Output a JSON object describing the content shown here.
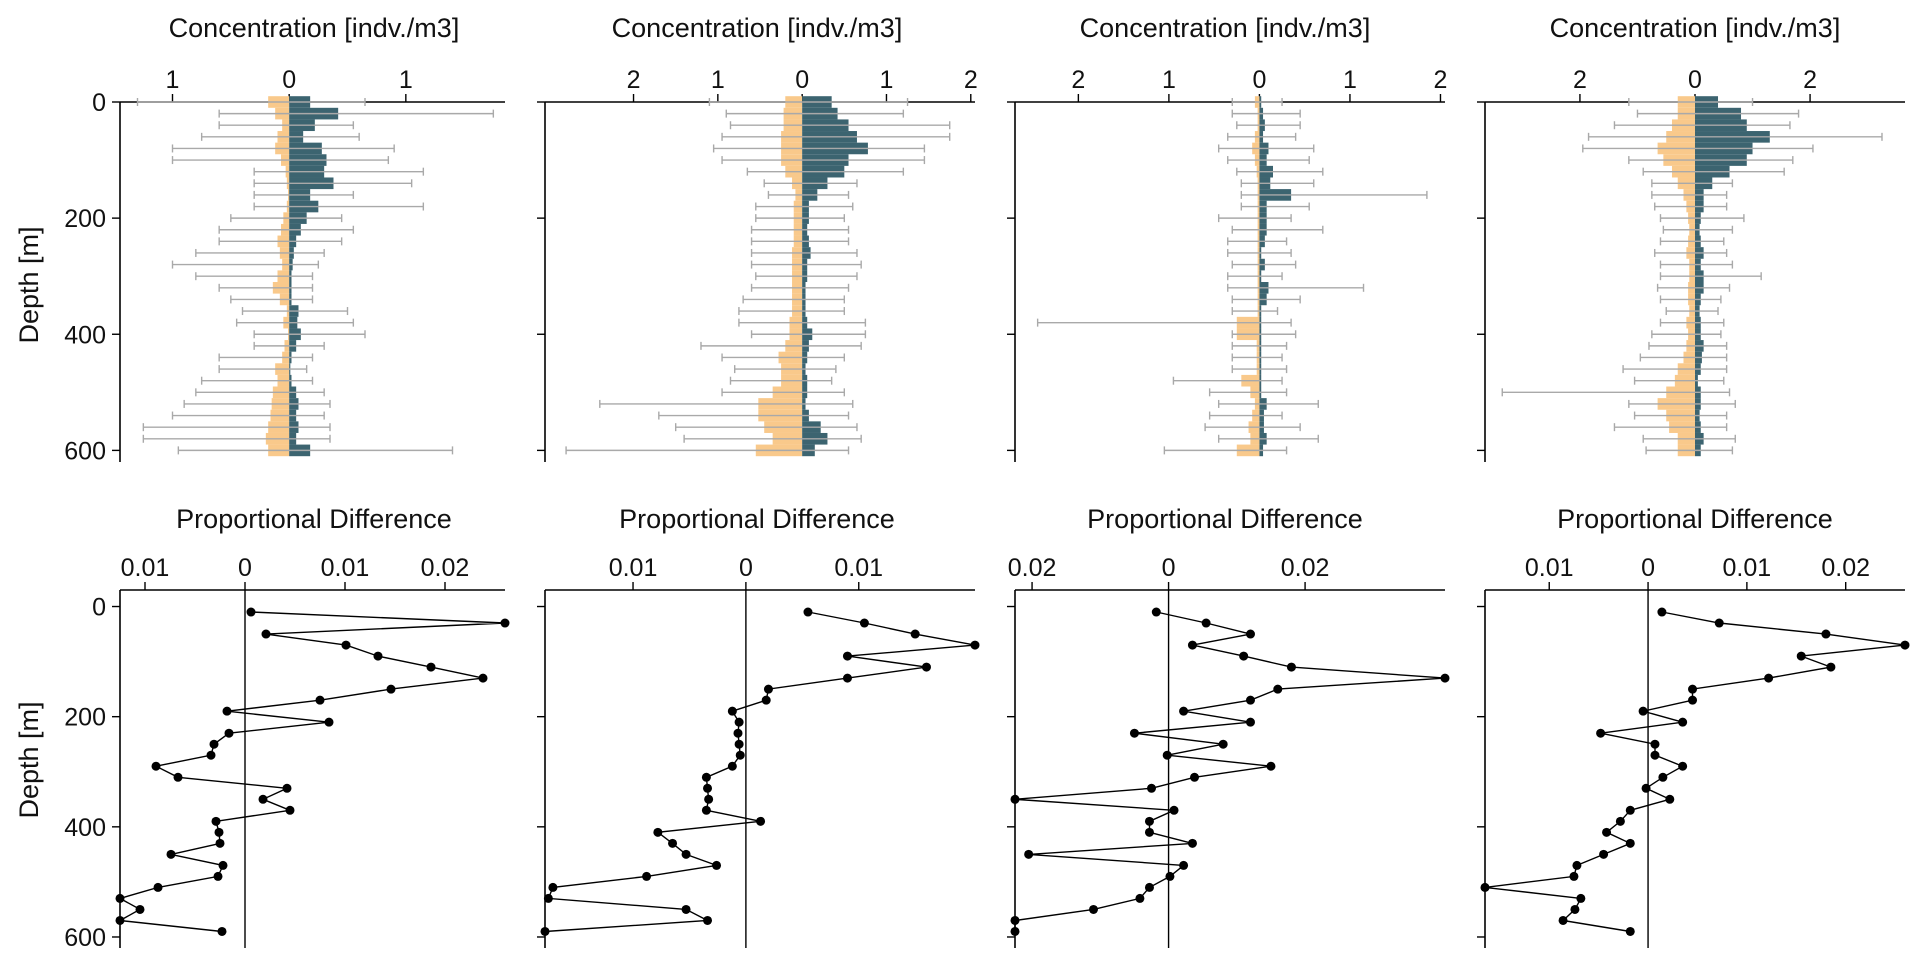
{
  "colors": {
    "left": "#F9C98B",
    "right": "#3C6470",
    "error": "#A9A9A9",
    "line": "#000000"
  },
  "labels": {
    "top_title": "Concentration [indv./m3]",
    "bottom_title": "Proportional Difference",
    "ylabel": "Depth [m]"
  },
  "chart_data": [
    {
      "type": "bar",
      "panel": 1,
      "title": "Concentration [indv./m3]",
      "ylabel": "Depth [m]",
      "xticks": [
        {
          "v": -1,
          "t": "1"
        },
        {
          "v": 0,
          "t": "0"
        },
        {
          "v": 1,
          "t": "1"
        }
      ],
      "xlim": [
        -1.45,
        1.85
      ],
      "ylim": [
        0,
        620
      ],
      "yticks": [
        0,
        200,
        400,
        600
      ],
      "depths": [
        0,
        20,
        40,
        60,
        80,
        100,
        120,
        140,
        160,
        180,
        200,
        220,
        240,
        260,
        280,
        300,
        320,
        340,
        360,
        380,
        400,
        420,
        440,
        460,
        480,
        500,
        520,
        540,
        560,
        580,
        600
      ],
      "series": [
        {
          "side": "left",
          "values": [
            0.18,
            0.12,
            0.06,
            0.1,
            0.12,
            0.07,
            0.03,
            0.02,
            0.01,
            0.02,
            0.05,
            0.07,
            0.1,
            0.08,
            0.06,
            0.1,
            0.14,
            0.08,
            0.02,
            0.05,
            0.01,
            0.04,
            0.06,
            0.12,
            0.1,
            0.14,
            0.15,
            0.16,
            0.18,
            0.2,
            0.18
          ],
          "err": [
            1.3,
            0.6,
            0.6,
            0.75,
            1.0,
            1.0,
            0.3,
            0.3,
            0.3,
            0.3,
            0.5,
            0.6,
            0.6,
            0.8,
            1.0,
            0.8,
            0.6,
            0.5,
            0.4,
            0.45,
            0.3,
            0.3,
            0.6,
            0.6,
            0.75,
            0.8,
            0.9,
            1.0,
            1.25,
            1.25,
            0.95
          ]
        },
        {
          "side": "right",
          "values": [
            0.18,
            0.42,
            0.22,
            0.12,
            0.28,
            0.32,
            0.3,
            0.38,
            0.18,
            0.25,
            0.15,
            0.1,
            0.06,
            0.04,
            0.03,
            0.02,
            0.02,
            0.02,
            0.08,
            0.07,
            0.1,
            0.06,
            0.02,
            0.01,
            0.02,
            0.06,
            0.08,
            0.06,
            0.08,
            0.06,
            0.18
          ],
          "err": [
            0.65,
            1.75,
            0.55,
            0.6,
            0.9,
            0.85,
            1.15,
            1.05,
            0.55,
            1.15,
            0.45,
            0.55,
            0.45,
            0.3,
            0.25,
            0.2,
            0.2,
            0.2,
            0.5,
            0.55,
            0.65,
            0.3,
            0.2,
            0.15,
            0.2,
            0.3,
            0.35,
            0.3,
            0.35,
            0.35,
            1.4
          ]
        }
      ]
    },
    {
      "type": "bar",
      "panel": 2,
      "title": "Concentration [indv./m3]",
      "ylabel": "",
      "xticks": [
        {
          "v": -2,
          "t": "2"
        },
        {
          "v": -1,
          "t": "1"
        },
        {
          "v": 0,
          "t": "0"
        },
        {
          "v": 1,
          "t": "1"
        },
        {
          "v": 2,
          "t": "2"
        }
      ],
      "xlim": [
        -3.05,
        2.05
      ],
      "ylim": [
        0,
        620
      ],
      "yticks": [
        0,
        200,
        400,
        600
      ],
      "depths": [
        0,
        20,
        40,
        60,
        80,
        100,
        120,
        140,
        160,
        180,
        200,
        220,
        240,
        260,
        280,
        300,
        320,
        340,
        360,
        380,
        400,
        420,
        440,
        460,
        480,
        500,
        520,
        540,
        560,
        580,
        600
      ],
      "series": [
        {
          "side": "left",
          "values": [
            0.2,
            0.22,
            0.22,
            0.25,
            0.25,
            0.25,
            0.2,
            0.12,
            0.08,
            0.1,
            0.1,
            0.1,
            0.1,
            0.12,
            0.12,
            0.12,
            0.12,
            0.12,
            0.12,
            0.15,
            0.15,
            0.2,
            0.28,
            0.25,
            0.25,
            0.35,
            0.52,
            0.52,
            0.45,
            0.35,
            0.55
          ],
          "err": [
            1.1,
            0.9,
            0.85,
            0.95,
            1.05,
            0.95,
            0.65,
            0.45,
            0.4,
            0.55,
            0.55,
            0.6,
            0.6,
            0.6,
            0.6,
            0.55,
            0.6,
            0.7,
            0.75,
            0.75,
            0.6,
            1.2,
            0.95,
            0.8,
            0.85,
            0.95,
            2.4,
            1.7,
            1.5,
            1.4,
            2.8
          ]
        },
        {
          "side": "right",
          "values": [
            0.35,
            0.42,
            0.55,
            0.65,
            0.78,
            0.55,
            0.5,
            0.3,
            0.18,
            0.08,
            0.08,
            0.06,
            0.08,
            0.1,
            0.06,
            0.06,
            0.04,
            0.04,
            0.04,
            0.06,
            0.12,
            0.08,
            0.06,
            0.04,
            0.06,
            0.06,
            0.04,
            0.08,
            0.22,
            0.3,
            0.15
          ],
          "err": [
            1.25,
            1.2,
            1.75,
            1.75,
            1.45,
            1.45,
            1.2,
            0.65,
            0.55,
            0.6,
            0.5,
            0.55,
            0.55,
            0.65,
            0.7,
            0.65,
            0.55,
            0.5,
            0.5,
            0.75,
            0.75,
            0.7,
            0.5,
            0.4,
            0.35,
            0.5,
            0.6,
            0.55,
            0.65,
            0.7,
            0.55
          ]
        }
      ]
    },
    {
      "type": "bar",
      "panel": 3,
      "title": "Concentration [indv./m3]",
      "ylabel": "",
      "xticks": [
        {
          "v": -2,
          "t": "2"
        },
        {
          "v": -1,
          "t": "1"
        },
        {
          "v": 0,
          "t": "0"
        },
        {
          "v": 1,
          "t": "1"
        },
        {
          "v": 2,
          "t": "2"
        }
      ],
      "xlim": [
        -2.7,
        2.05
      ],
      "ylim": [
        0,
        620
      ],
      "yticks": [
        0,
        200,
        400,
        600
      ],
      "depths": [
        0,
        20,
        40,
        60,
        80,
        100,
        120,
        140,
        160,
        180,
        200,
        220,
        240,
        260,
        280,
        300,
        320,
        340,
        360,
        380,
        400,
        420,
        440,
        460,
        480,
        500,
        520,
        540,
        560,
        580,
        600
      ],
      "series": [
        {
          "side": "left",
          "values": [
            0.05,
            0.02,
            0.02,
            0.05,
            0.08,
            0.05,
            0.03,
            0.02,
            0.02,
            0.02,
            0.02,
            0.02,
            0.02,
            0.02,
            0.02,
            0.02,
            0.02,
            0.02,
            0.02,
            0.25,
            0.25,
            0.03,
            0.03,
            0.03,
            0.2,
            0.1,
            0.05,
            0.08,
            0.12,
            0.1,
            0.25
          ],
          "err": [
            0.3,
            0.3,
            0.25,
            0.35,
            0.45,
            0.35,
            0.25,
            0.2,
            0.2,
            0.2,
            0.45,
            0.3,
            0.35,
            0.35,
            0.3,
            0.35,
            0.35,
            0.3,
            0.3,
            2.45,
            0.3,
            0.3,
            0.3,
            0.3,
            0.95,
            0.55,
            0.45,
            0.55,
            0.6,
            0.45,
            1.05
          ]
        },
        {
          "side": "right",
          "values": [
            0.02,
            0.04,
            0.06,
            0.04,
            0.1,
            0.08,
            0.15,
            0.12,
            0.35,
            0.08,
            0.08,
            0.08,
            0.06,
            0.02,
            0.06,
            0.02,
            0.1,
            0.08,
            0.02,
            0.02,
            0.02,
            0.02,
            0.02,
            0.02,
            0.02,
            0.02,
            0.08,
            0.05,
            0.05,
            0.08,
            0.04
          ],
          "err": [
            0.25,
            0.45,
            0.45,
            0.4,
            0.6,
            0.55,
            0.7,
            0.6,
            1.85,
            0.55,
            0.35,
            0.7,
            0.3,
            0.35,
            0.4,
            0.25,
            1.15,
            0.45,
            0.2,
            0.35,
            0.4,
            0.3,
            0.25,
            0.3,
            0.25,
            0.3,
            0.65,
            0.25,
            0.45,
            0.65,
            0.3
          ]
        }
      ]
    },
    {
      "type": "bar",
      "panel": 4,
      "title": "Concentration [indv./m3]",
      "ylabel": "",
      "xticks": [
        {
          "v": -2,
          "t": "2"
        },
        {
          "v": 0,
          "t": "0"
        },
        {
          "v": 2,
          "t": "2"
        }
      ],
      "xlim": [
        -3.65,
        3.65
      ],
      "ylim": [
        0,
        620
      ],
      "yticks": [
        0,
        200,
        400,
        600
      ],
      "depths": [
        0,
        20,
        40,
        60,
        80,
        100,
        120,
        140,
        160,
        180,
        200,
        220,
        240,
        260,
        280,
        300,
        320,
        340,
        360,
        380,
        400,
        420,
        440,
        460,
        480,
        500,
        520,
        540,
        560,
        580,
        600
      ],
      "series": [
        {
          "side": "left",
          "values": [
            0.3,
            0.3,
            0.4,
            0.5,
            0.65,
            0.55,
            0.4,
            0.3,
            0.2,
            0.15,
            0.12,
            0.1,
            0.12,
            0.15,
            0.1,
            0.1,
            0.12,
            0.12,
            0.1,
            0.15,
            0.12,
            0.15,
            0.2,
            0.3,
            0.35,
            0.5,
            0.65,
            0.5,
            0.45,
            0.3,
            0.3
          ],
          "err": [
            1.15,
            1.0,
            1.4,
            1.85,
            1.95,
            1.15,
            0.9,
            0.75,
            0.75,
            0.7,
            0.6,
            0.55,
            0.6,
            0.7,
            0.6,
            0.6,
            0.65,
            0.6,
            0.5,
            0.6,
            0.75,
            0.8,
            0.95,
            1.25,
            1.05,
            3.35,
            1.15,
            1.05,
            1.4,
            0.9,
            0.85
          ]
        },
        {
          "side": "right",
          "values": [
            0.4,
            0.8,
            0.9,
            1.3,
            1.0,
            0.9,
            0.6,
            0.3,
            0.15,
            0.15,
            0.1,
            0.08,
            0.1,
            0.15,
            0.1,
            0.15,
            0.15,
            0.1,
            0.08,
            0.1,
            0.1,
            0.15,
            0.12,
            0.1,
            0.05,
            0.1,
            0.1,
            0.08,
            0.1,
            0.15,
            0.1
          ],
          "err": [
            1.0,
            1.8,
            1.65,
            3.25,
            2.05,
            1.7,
            1.55,
            0.65,
            0.55,
            0.55,
            0.85,
            0.65,
            0.5,
            0.55,
            0.65,
            1.15,
            0.6,
            0.45,
            0.4,
            0.5,
            0.45,
            0.55,
            0.55,
            0.55,
            0.5,
            0.6,
            0.7,
            0.55,
            0.55,
            0.7,
            0.65
          ]
        }
      ]
    },
    {
      "type": "line",
      "panel": 5,
      "title": "Proportional Difference",
      "ylabel": "Depth [m]",
      "xticks": [
        {
          "v": -0.01,
          "t": "0.01"
        },
        {
          "v": 0,
          "t": "0"
        },
        {
          "v": 0.01,
          "t": "0.01"
        },
        {
          "v": 0.02,
          "t": "0.02"
        }
      ],
      "xlim": [
        -0.0125,
        0.026
      ],
      "ylim": [
        -30,
        620
      ],
      "yticks": [
        0,
        200,
        400,
        600
      ],
      "y": [
        10,
        30,
        50,
        70,
        90,
        110,
        130,
        150,
        170,
        190,
        210,
        230,
        250,
        270,
        290,
        310,
        330,
        350,
        370,
        390,
        410,
        430,
        450,
        470,
        490,
        510,
        530,
        550,
        570,
        590
      ],
      "x": [
        0.0006,
        0.026,
        0.0021,
        0.0101,
        0.0133,
        0.0186,
        0.0238,
        0.0146,
        0.0075,
        -0.0018,
        0.0084,
        -0.0016,
        -0.0031,
        -0.0034,
        -0.0089,
        -0.0067,
        0.0042,
        0.0018,
        0.0045,
        -0.0029,
        -0.0026,
        -0.0025,
        -0.0074,
        -0.0022,
        -0.0027,
        -0.0087,
        -0.0125,
        -0.0105,
        -0.0125,
        -0.0023
      ]
    },
    {
      "type": "line",
      "panel": 6,
      "title": "Proportional Difference",
      "ylabel": "",
      "xticks": [
        {
          "v": -0.01,
          "t": "0.01"
        },
        {
          "v": 0,
          "t": "0"
        },
        {
          "v": 0.01,
          "t": "0.01"
        }
      ],
      "xlim": [
        -0.0178,
        0.0203
      ],
      "ylim": [
        -30,
        620
      ],
      "yticks": [
        0,
        200,
        400,
        600
      ],
      "y": [
        10,
        30,
        50,
        70,
        90,
        110,
        130,
        150,
        170,
        190,
        210,
        230,
        250,
        270,
        290,
        310,
        330,
        350,
        370,
        390,
        410,
        430,
        450,
        470,
        490,
        510,
        530,
        550,
        570,
        590
      ],
      "x": [
        0.0055,
        0.0105,
        0.015,
        0.0203,
        0.009,
        0.016,
        0.009,
        0.002,
        0.0018,
        -0.0012,
        -0.0006,
        -0.0007,
        -0.0006,
        -0.0005,
        -0.0012,
        -0.0035,
        -0.0034,
        -0.0033,
        -0.0035,
        0.0013,
        -0.0078,
        -0.0065,
        -0.0053,
        -0.0026,
        -0.0088,
        -0.0171,
        -0.0175,
        -0.0053,
        -0.0034,
        -0.0178
      ]
    },
    {
      "type": "line",
      "panel": 7,
      "title": "Proportional Difference",
      "ylabel": "",
      "xticks": [
        {
          "v": -0.02,
          "t": "0.02"
        },
        {
          "v": 0,
          "t": "0"
        },
        {
          "v": 0.02,
          "t": "0.02"
        }
      ],
      "xlim": [
        -0.0225,
        0.0405
      ],
      "ylim": [
        -30,
        620
      ],
      "yticks": [
        0,
        200,
        400,
        600
      ],
      "y": [
        10,
        30,
        50,
        70,
        90,
        110,
        130,
        150,
        170,
        190,
        210,
        230,
        250,
        270,
        290,
        310,
        330,
        350,
        370,
        390,
        410,
        430,
        450,
        470,
        490,
        510,
        530,
        550,
        570,
        590
      ],
      "x": [
        -0.0018,
        0.0055,
        0.012,
        0.0035,
        0.011,
        0.018,
        0.0405,
        0.016,
        0.012,
        0.0022,
        0.012,
        -0.005,
        0.008,
        -0.0002,
        0.015,
        0.0038,
        -0.0025,
        -0.0225,
        0.0008,
        -0.0028,
        -0.0028,
        0.0035,
        -0.0205,
        0.0022,
        0.0002,
        -0.0028,
        -0.0042,
        -0.011,
        -0.0225,
        -0.0225
      ]
    },
    {
      "type": "line",
      "panel": 8,
      "title": "Proportional Difference",
      "ylabel": "",
      "xticks": [
        {
          "v": -0.01,
          "t": "0.01"
        },
        {
          "v": 0,
          "t": "0"
        },
        {
          "v": 0.01,
          "t": "0.01"
        },
        {
          "v": 0.02,
          "t": "0.02"
        }
      ],
      "xlim": [
        -0.0165,
        0.026
      ],
      "ylim": [
        -30,
        620
      ],
      "yticks": [
        0,
        200,
        400,
        600
      ],
      "y": [
        10,
        30,
        50,
        70,
        90,
        110,
        130,
        150,
        170,
        190,
        210,
        230,
        250,
        270,
        290,
        310,
        330,
        350,
        370,
        390,
        410,
        430,
        450,
        470,
        490,
        510,
        530,
        550,
        570,
        590
      ],
      "x": [
        0.0014,
        0.0072,
        0.018,
        0.026,
        0.0155,
        0.0185,
        0.0122,
        0.0045,
        0.0045,
        -0.0005,
        0.0035,
        -0.0048,
        0.0007,
        0.0007,
        0.0035,
        0.0015,
        -0.0002,
        0.0022,
        -0.0018,
        -0.0028,
        -0.0042,
        -0.0018,
        -0.0045,
        -0.0072,
        -0.0075,
        -0.0165,
        -0.0068,
        -0.0074,
        -0.0086,
        -0.0018
      ]
    }
  ]
}
